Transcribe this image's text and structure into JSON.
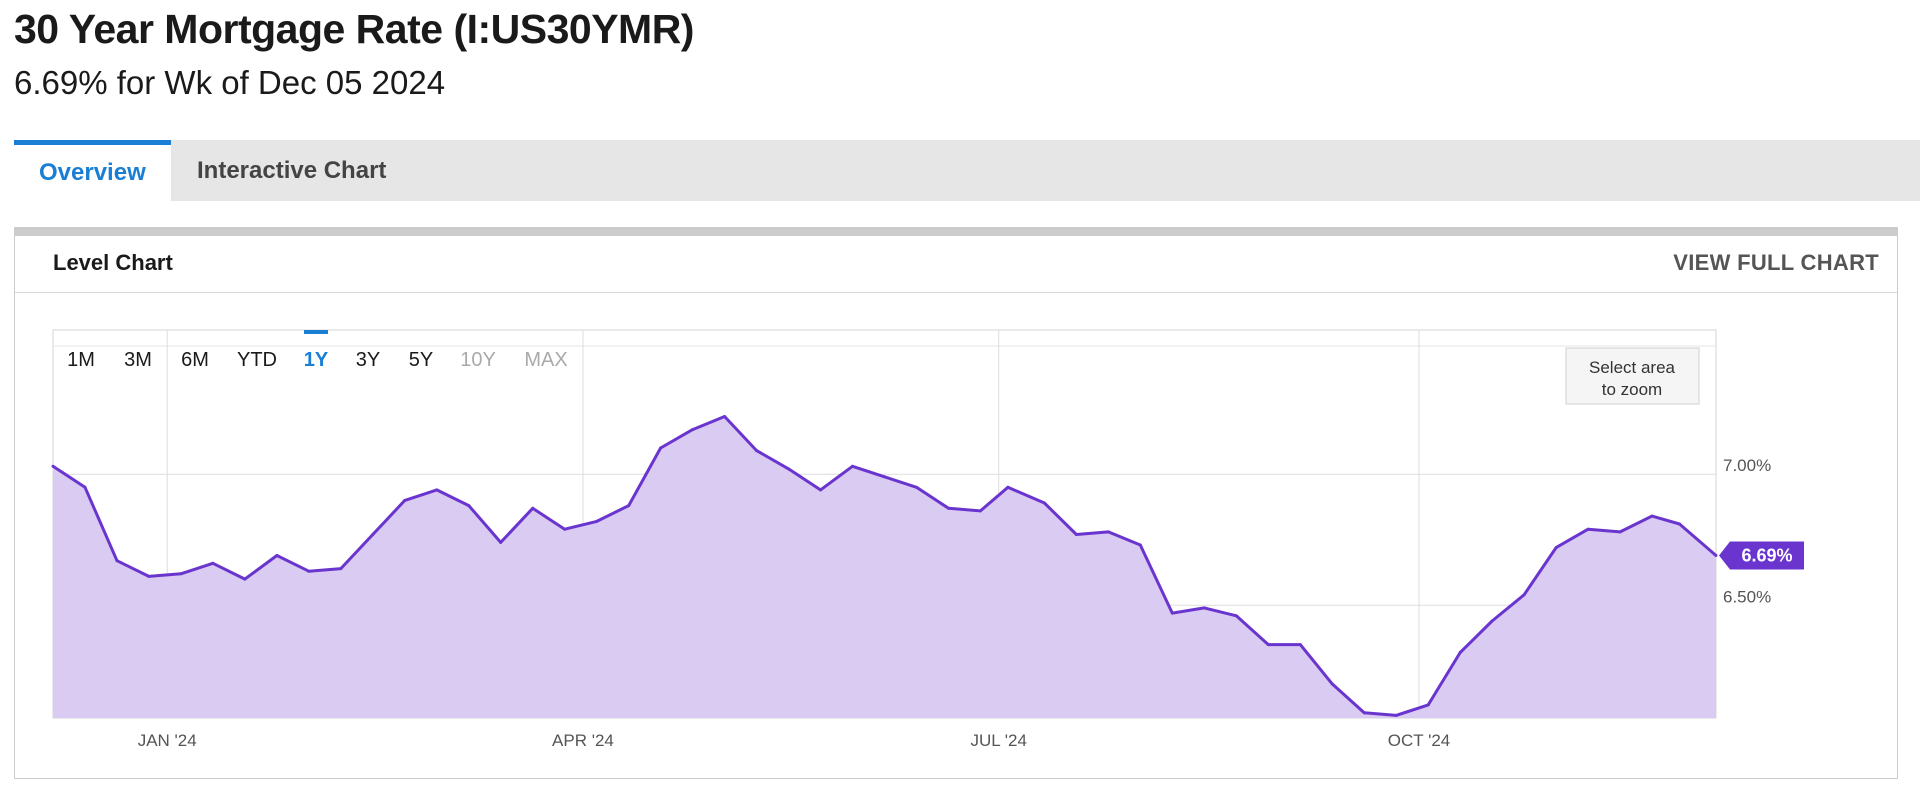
{
  "header": {
    "title": "30 Year Mortgage Rate (I:US30YMR)",
    "subtitle": "6.69% for Wk of Dec 05 2024"
  },
  "tabs": [
    {
      "label": "Overview",
      "active": true
    },
    {
      "label": "Interactive Chart",
      "active": false
    }
  ],
  "card": {
    "title": "Level Chart",
    "link": "VIEW FULL CHART"
  },
  "range_buttons": [
    {
      "label": "1M",
      "state": "enabled"
    },
    {
      "label": "3M",
      "state": "enabled"
    },
    {
      "label": "6M",
      "state": "enabled"
    },
    {
      "label": "YTD",
      "state": "enabled"
    },
    {
      "label": "1Y",
      "state": "selected"
    },
    {
      "label": "3Y",
      "state": "enabled"
    },
    {
      "label": "5Y",
      "state": "enabled"
    },
    {
      "label": "10Y",
      "state": "disabled"
    },
    {
      "label": "MAX",
      "state": "disabled"
    }
  ],
  "zoom_hint": [
    "Select area",
    "to zoom"
  ],
  "colors": {
    "accent": "#1a7fd4",
    "line": "#6a35cf",
    "area": "#d9cbf1",
    "badge": "#6a35cf"
  },
  "chart_data": {
    "type": "area",
    "series": [
      {
        "x": [
          "2023-12-07",
          "2023-12-14",
          "2023-12-21",
          "2023-12-28",
          "2024-01-04",
          "2024-01-11",
          "2024-01-18",
          "2024-01-25",
          "2024-02-01",
          "2024-02-08",
          "2024-02-15",
          "2024-02-22",
          "2024-02-29",
          "2024-03-07",
          "2024-03-14",
          "2024-03-21",
          "2024-03-28",
          "2024-04-04",
          "2024-04-11",
          "2024-04-18",
          "2024-04-25",
          "2024-05-02",
          "2024-05-09",
          "2024-05-16",
          "2024-05-23",
          "2024-05-30",
          "2024-06-06",
          "2024-06-13",
          "2024-06-20",
          "2024-06-27",
          "2024-07-03",
          "2024-07-11",
          "2024-07-18",
          "2024-07-25",
          "2024-08-01",
          "2024-08-08",
          "2024-08-15",
          "2024-08-22",
          "2024-08-29",
          "2024-09-05",
          "2024-09-12",
          "2024-09-19",
          "2024-09-26",
          "2024-10-03",
          "2024-10-10",
          "2024-10-17",
          "2024-10-24",
          "2024-10-31",
          "2024-11-07",
          "2024-11-14",
          "2024-11-21",
          "2024-11-27",
          "2024-12-05"
        ],
        "values": [
          7.03,
          6.95,
          6.67,
          6.61,
          6.62,
          6.66,
          6.6,
          6.69,
          6.63,
          6.64,
          6.77,
          6.9,
          6.94,
          6.88,
          6.74,
          6.87,
          6.79,
          6.82,
          6.88,
          7.1,
          7.17,
          7.22,
          7.09,
          7.02,
          6.94,
          7.03,
          6.99,
          6.95,
          6.87,
          6.86,
          6.95,
          6.89,
          6.77,
          6.78,
          6.73,
          6.47,
          6.49,
          6.46,
          6.35,
          6.35,
          6.2,
          6.09,
          6.08,
          6.12,
          6.32,
          6.44,
          6.54,
          6.72,
          6.79,
          6.78,
          6.84,
          6.81,
          6.69
        ]
      }
    ],
    "x_ticks": [
      {
        "date": "2024-01-01",
        "label": "JAN '24"
      },
      {
        "date": "2024-04-01",
        "label": "APR '24"
      },
      {
        "date": "2024-07-01",
        "label": "JUL '24"
      },
      {
        "date": "2024-10-01",
        "label": "OCT '24"
      }
    ],
    "y_ticks": [
      {
        "value": 7.0,
        "label": "7.00%"
      },
      {
        "value": 6.5,
        "label": "6.50%"
      }
    ],
    "ylim": [
      6.07,
      7.55
    ],
    "last_value_label": "6.69%",
    "grid": true,
    "legend": "none"
  }
}
